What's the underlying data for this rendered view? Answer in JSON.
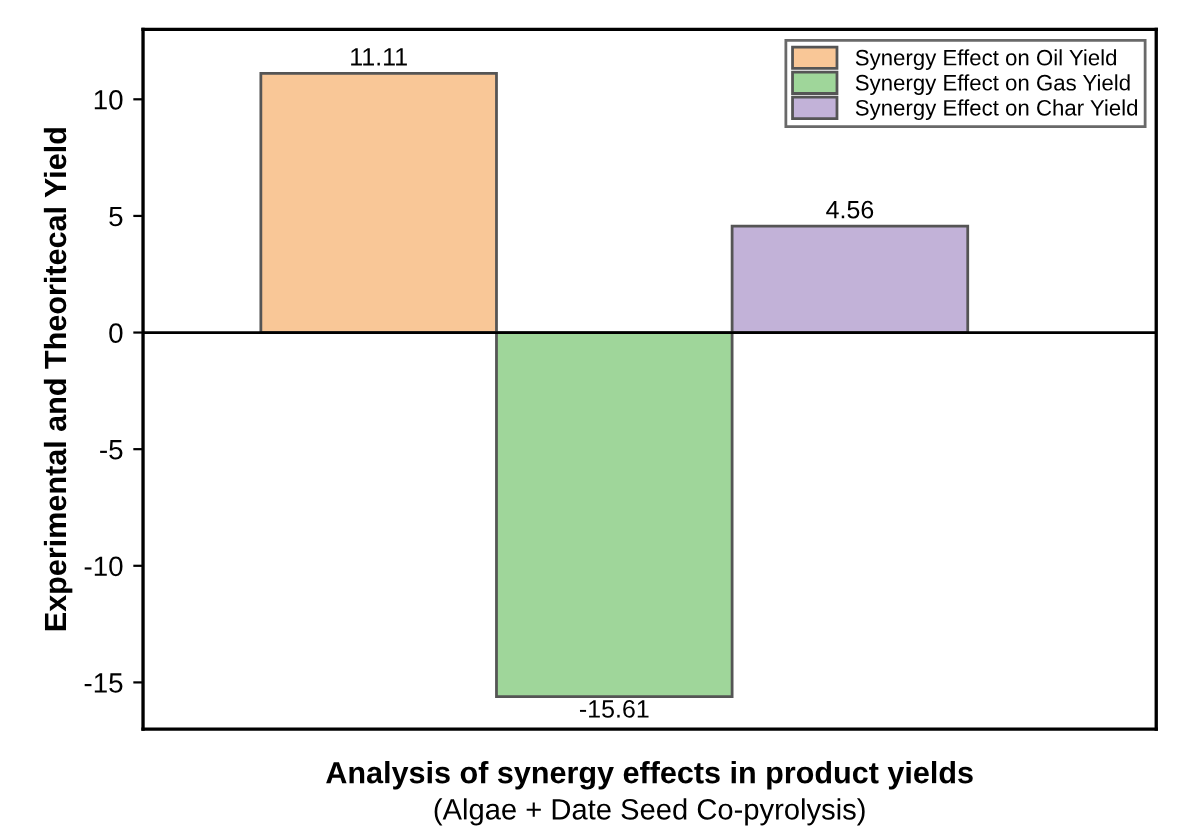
{
  "chart_data": {
    "type": "bar",
    "xlabel": "Analysis of synergy effects in product yields",
    "annotations": [
      "(Algae + Date Seed Co-pyrolysis)"
    ],
    "ylabel": "Experimental and Theoritecal Yield",
    "categories": [
      null,
      null,
      null
    ],
    "series": [
      {
        "name": "Synergy Effect on Oil Yield",
        "color": "#f9c797",
        "values": [
          11.11,
          null,
          null
        ]
      },
      {
        "name": "Synergy Effect on Gas Yield",
        "color": "#9fd69a",
        "values": [
          null,
          -15.61,
          null
        ]
      },
      {
        "name": "Synergy Effect on Char Yield",
        "color": "#c2b2d8",
        "values": [
          null,
          null,
          4.56
        ]
      }
    ],
    "ylim": [
      -17,
      13
    ],
    "yticks": [
      -15,
      -10,
      -5,
      0,
      5,
      10
    ],
    "data_labels": true,
    "legend": "top right",
    "grid": false,
    "ref_lines": [
      {
        "axis": "y",
        "value": 0
      }
    ]
  }
}
